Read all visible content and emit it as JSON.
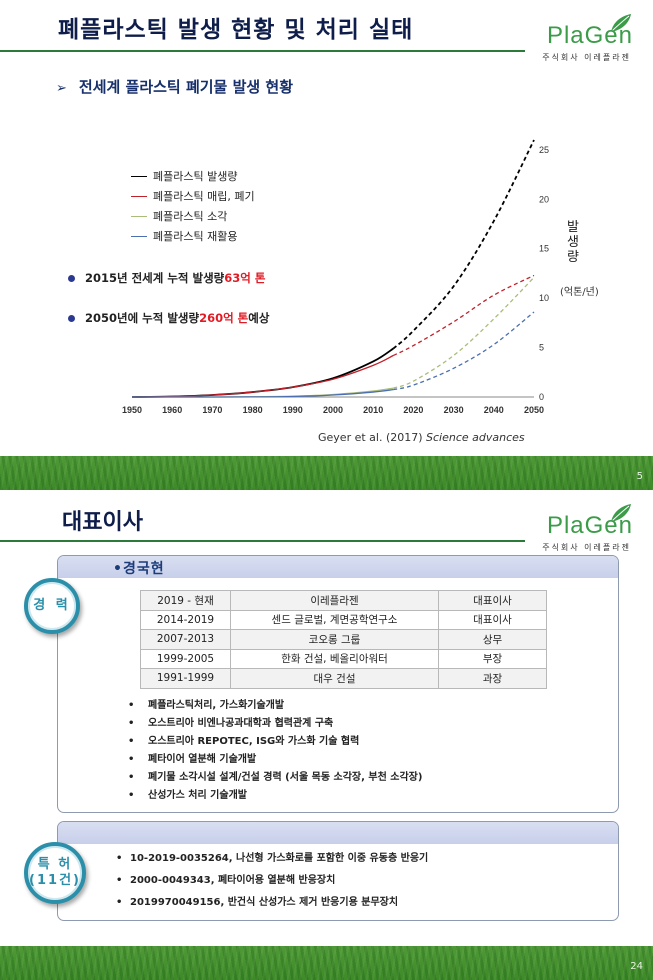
{
  "slide1": {
    "title": "폐플라스틱 발생 현황 및 처리 실태",
    "logo": {
      "text": "PlaGen",
      "sub": "주식회사 이레플라젠"
    },
    "subhead": "전세계 플라스틱 폐기물 발생 현황",
    "legend": [
      {
        "label": "폐플라스틱 발생량",
        "color": "#000000"
      },
      {
        "label": "폐플라스틱 매립, 폐기",
        "color": "#c0202a"
      },
      {
        "label": "폐플라스틱 소각",
        "color": "#a9bd7a"
      },
      {
        "label": "폐플라스틱 재활용",
        "color": "#4b6fb0"
      }
    ],
    "bullets": [
      {
        "pre": "2015년 전세계 누적 발생량 ",
        "red": "63억 톤",
        "post": ""
      },
      {
        "pre": "2050년에 누적 발생량 ",
        "red": "260억 톤",
        "post": " 예상"
      }
    ],
    "unit_vertical": "발생량",
    "unit_paren": "(억톤/년)",
    "source_authors": "Geyer et al. (2017) ",
    "source_journal": "Science advances",
    "page": "5"
  },
  "chart_data": {
    "type": "line",
    "x_ticks": [
      "1950",
      "1960",
      "1970",
      "1980",
      "1990",
      "2000",
      "2010",
      "2020",
      "2030",
      "2040",
      "2050"
    ],
    "y_ticks": [
      "0",
      "5",
      "10",
      "15",
      "20",
      "25"
    ],
    "xlim": [
      1950,
      2050
    ],
    "ylim": [
      0,
      26
    ],
    "series": [
      {
        "name": "폐플라스틱 발생량",
        "style": "solid-then-dashed",
        "split": 2015,
        "x": [
          1950,
          1960,
          1970,
          1980,
          1990,
          2000,
          2010,
          2015,
          2020,
          2030,
          2040,
          2050
        ],
        "y": [
          0,
          0.05,
          0.2,
          0.5,
          1.0,
          1.9,
          3.6,
          4.9,
          6.7,
          11.2,
          17.8,
          26.0
        ]
      },
      {
        "name": "폐플라스틱 매립, 폐기",
        "style": "solid-then-dashed",
        "split": 2015,
        "x": [
          1950,
          1960,
          1970,
          1980,
          1990,
          2000,
          2010,
          2015,
          2020,
          2030,
          2040,
          2050
        ],
        "y": [
          0,
          0.05,
          0.2,
          0.5,
          1.0,
          1.8,
          3.2,
          4.2,
          5.2,
          7.6,
          10.3,
          12.3
        ]
      },
      {
        "name": "폐플라스틱 소각",
        "style": "solid-then-dashed",
        "split": 2015,
        "x": [
          1950,
          1960,
          1970,
          1980,
          1990,
          2000,
          2010,
          2015,
          2020,
          2030,
          2040,
          2050
        ],
        "y": [
          0,
          0,
          0,
          0.02,
          0.08,
          0.25,
          0.6,
          0.9,
          1.6,
          4.2,
          7.9,
          12.1
        ]
      },
      {
        "name": "폐플라스틱 재활용",
        "style": "solid-then-dashed",
        "split": 2015,
        "x": [
          1950,
          1960,
          1970,
          1980,
          1990,
          2000,
          2010,
          2015,
          2020,
          2030,
          2040,
          2050
        ],
        "y": [
          0,
          0,
          0,
          0.01,
          0.05,
          0.2,
          0.5,
          0.75,
          1.2,
          2.9,
          5.3,
          8.6
        ]
      }
    ]
  },
  "slide2": {
    "title": "대표이사",
    "logo": {
      "text": "PlaGen",
      "sub": "주식회사 이레플라젠"
    },
    "name": "•경국현",
    "career_badge": "경 력",
    "career": [
      [
        "2019 - 현재",
        "이레플라젠",
        "대표이사"
      ],
      [
        "2014-2019",
        "센드 글로벌, 계면공학연구소",
        "대표이사"
      ],
      [
        "2007-2013",
        "코오롱 그룹",
        "상무"
      ],
      [
        "1999-2005",
        "한화 건설, 베올리아워터",
        "부장"
      ],
      [
        "1991-1999",
        "대우 건설",
        "과장"
      ]
    ],
    "achievements": [
      "폐플라스틱처리, 가스화기술개발",
      "오스트리아 비엔나공과대학과 협력관계 구축",
      "오스트리아 REPOTEC, ISG와 가스화 기술 협력",
      "폐타이어 열분해 기술개발",
      "폐기물 소각시설 설계/건설 경력 (서울 목동 소각장, 부천 소각장)",
      "산성가스 처리 기술개발"
    ],
    "patent_badge_1": "특 허",
    "patent_badge_2": "(11건)",
    "patents": [
      "10-2019-0035264, 나선형 가스화로를 포함한 이중 유동층 반응기",
      "2000-0049343, 폐타이어용 열분해 반응장치",
      "2019970049156, 반건식 산성가스 제거 반응기용 분무장치"
    ],
    "page": "24"
  }
}
